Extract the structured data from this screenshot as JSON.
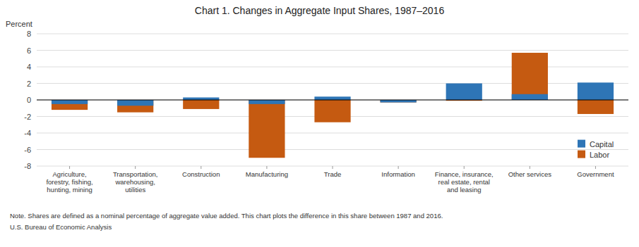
{
  "chart_data": {
    "type": "bar",
    "title": "Chart 1. Changes in Aggregate Input Shares, 1987–2016",
    "y_label": "Percent",
    "categories": [
      "Agriculture,\nforestry, fishing,\nhunting, mining",
      "Transportation,\nwarehousing,\nutilities",
      "Construction",
      "Manufacturing",
      "Trade",
      "Information",
      "Finance, insurance,\nreal estate, rental\nand leasing",
      "Other services",
      "Government"
    ],
    "series": [
      {
        "name": "Labor",
        "color": "#C55A11",
        "values": [
          -1.2,
          -1.5,
          -1.1,
          -7.0,
          -2.7,
          -0.3,
          -0.1,
          5.7,
          -1.7
        ]
      },
      {
        "name": "Capital",
        "color": "#2E75B6",
        "values": [
          -0.5,
          -0.7,
          0.3,
          -0.5,
          0.4,
          -0.3,
          2.0,
          0.7,
          2.1
        ]
      }
    ],
    "ylim": [
      -8,
      8
    ],
    "yticks": [
      -8,
      -6,
      -4,
      -2,
      0,
      2,
      4,
      6,
      8
    ],
    "grid": true,
    "legend": "lower right",
    "annotations": [
      "Note. Shares are defined as a nominal percentage of aggregate value added. This chart plots the difference in this share between 1987 and 2016.",
      "U.S. Bureau of Economic Analysis"
    ]
  }
}
